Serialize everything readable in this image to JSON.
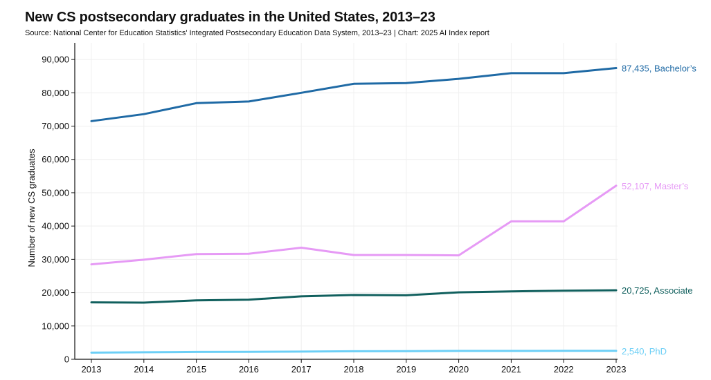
{
  "chart_data": {
    "type": "line",
    "title": "New CS postsecondary graduates in the United States, 2013–23",
    "subtitle": "Source: National Center for Education Statistics' Integrated Postsecondary Education Data System, 2013–23 | Chart: 2025 AI Index report",
    "xlabel": "",
    "ylabel": "Number of new CS graduates",
    "ylim": [
      0,
      95000
    ],
    "yticks": [
      0,
      10000,
      20000,
      30000,
      40000,
      50000,
      60000,
      70000,
      80000,
      90000
    ],
    "ytick_labels": [
      "0",
      "10,000",
      "20,000",
      "30,000",
      "40,000",
      "50,000",
      "60,000",
      "70,000",
      "80,000",
      "90,000"
    ],
    "x": [
      2013,
      2014,
      2015,
      2016,
      2017,
      2018,
      2019,
      2020,
      2021,
      2022,
      2023
    ],
    "x_labels": [
      "2013",
      "2014",
      "2015",
      "2016",
      "2017",
      "2018",
      "2019",
      "2020",
      "2021",
      "2022",
      "2023"
    ],
    "grid": true,
    "series": [
      {
        "name": "Bachelor's",
        "key": "bachelors",
        "color": "#1f6aa5",
        "end_label": "87,435, Bachelor’s",
        "values": [
          71500,
          73600,
          76900,
          77400,
          80000,
          82700,
          82900,
          84200,
          85900,
          85900,
          87435
        ]
      },
      {
        "name": "Master's",
        "key": "masters",
        "color": "#e69af5",
        "end_label": "52,107, Master’s",
        "values": [
          28500,
          29900,
          31600,
          31700,
          33500,
          31300,
          31300,
          31200,
          41400,
          41400,
          52107
        ]
      },
      {
        "name": "Associate",
        "key": "associate",
        "color": "#11605e",
        "end_label": "20,725, Associate",
        "values": [
          17100,
          17000,
          17700,
          17900,
          18900,
          19300,
          19200,
          20100,
          20400,
          20600,
          20725
        ]
      },
      {
        "name": "PhD",
        "key": "phd",
        "color": "#6ccff6",
        "end_label": "2,540, PhD",
        "values": [
          2000,
          2100,
          2200,
          2250,
          2300,
          2400,
          2450,
          2500,
          2520,
          2530,
          2540
        ]
      }
    ]
  }
}
